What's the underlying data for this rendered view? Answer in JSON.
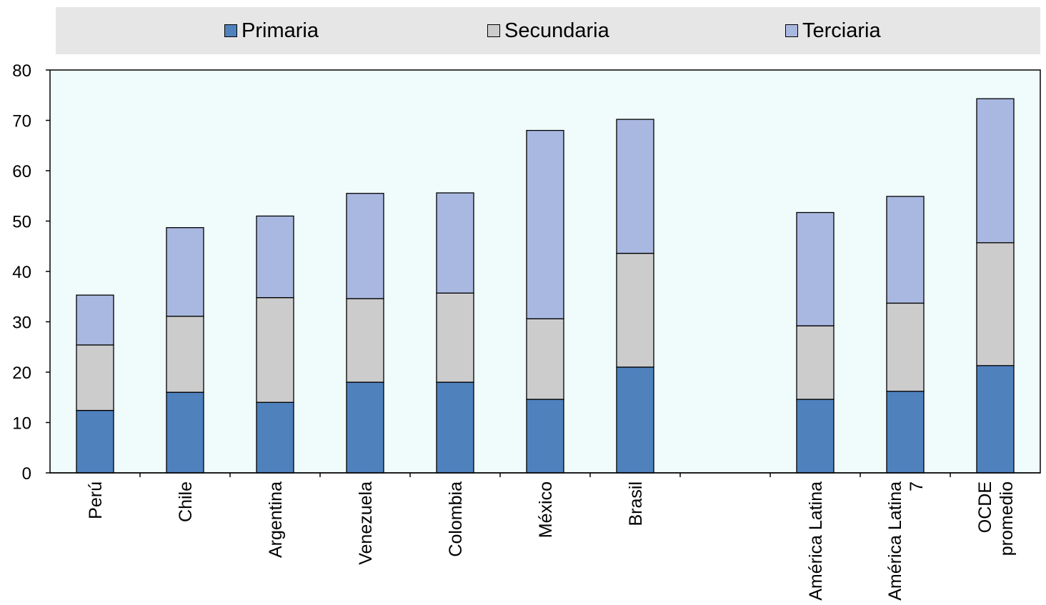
{
  "chart_data": {
    "type": "bar",
    "stacked": true,
    "legend_position": "top",
    "grid": false,
    "ylim": [
      0,
      80
    ],
    "yticks": [
      "0",
      "10",
      "20",
      "30",
      "40",
      "50",
      "60",
      "70",
      "80"
    ],
    "categories": [
      [
        "Perú"
      ],
      [
        "Chile"
      ],
      [
        "Argentina"
      ],
      [
        "Venezuela"
      ],
      [
        "Colombia"
      ],
      [
        "México"
      ],
      [
        "Brasil"
      ],
      [],
      [
        "América Latina"
      ],
      [
        "América Latina",
        "7"
      ],
      [
        "OCDE",
        "promedio"
      ]
    ],
    "series": [
      {
        "name": "Primaria",
        "color": "#4f81bd",
        "values": [
          12.4,
          16.0,
          14.0,
          18.0,
          18.0,
          14.6,
          21.0,
          null,
          14.6,
          16.2,
          21.3
        ]
      },
      {
        "name": "Secundaria",
        "color": "#cccccc",
        "values": [
          13.0,
          15.1,
          20.8,
          16.6,
          17.7,
          16.0,
          22.6,
          null,
          14.6,
          17.5,
          24.4
        ]
      },
      {
        "name": "Terciaria",
        "color": "#a9b8e1",
        "values": [
          9.9,
          17.6,
          16.2,
          20.9,
          19.9,
          37.4,
          26.6,
          null,
          22.5,
          21.2,
          28.6
        ]
      }
    ],
    "plot_background": "#f0fcfc"
  }
}
